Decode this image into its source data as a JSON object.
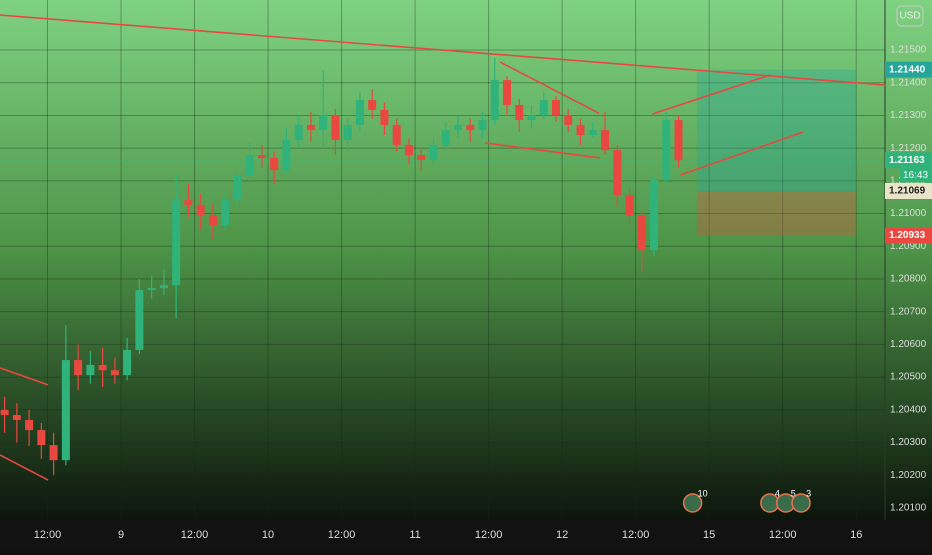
{
  "chart_data": {
    "type": "candlestick",
    "currency": "USD",
    "up_color": "#2fb37a",
    "down_color": "#e8483f",
    "grid": true,
    "xlim": [
      -19.75,
      124.7
    ],
    "ylim": [
      1.20063,
      1.21653
    ],
    "xticks": [
      {
        "value": -12,
        "label": "12:00"
      },
      {
        "value": 0,
        "label": "9"
      },
      {
        "value": 12,
        "label": "12:00"
      },
      {
        "value": 24,
        "label": "10"
      },
      {
        "value": 36,
        "label": "12:00"
      },
      {
        "value": 48,
        "label": "11"
      },
      {
        "value": 60,
        "label": "12:00"
      },
      {
        "value": 72,
        "label": "12"
      },
      {
        "value": 84,
        "label": "12:00"
      },
      {
        "value": 96,
        "label": "15"
      },
      {
        "value": 108,
        "label": "12:00"
      },
      {
        "value": 120,
        "label": "16"
      }
    ],
    "yticks": [
      {
        "value": 1.201,
        "label": "1.20100"
      },
      {
        "value": 1.202,
        "label": "1.20200"
      },
      {
        "value": 1.203,
        "label": "1.20300"
      },
      {
        "value": 1.204,
        "label": "1.20400"
      },
      {
        "value": 1.205,
        "label": "1.20500"
      },
      {
        "value": 1.206,
        "label": "1.20600"
      },
      {
        "value": 1.207,
        "label": "1.20700"
      },
      {
        "value": 1.208,
        "label": "1.20800"
      },
      {
        "value": 1.209,
        "label": "1.20900"
      },
      {
        "value": 1.21,
        "label": "1.21000"
      },
      {
        "value": 1.211,
        "label": "1.21100"
      },
      {
        "value": 1.212,
        "label": "1.21200"
      },
      {
        "value": 1.213,
        "label": "1.21300"
      },
      {
        "value": 1.214,
        "label": "1.21400"
      },
      {
        "value": 1.215,
        "label": "1.21500"
      }
    ],
    "x": [
      -19,
      -17,
      -15,
      -13,
      -11,
      -9,
      -7,
      -5,
      -3,
      -1,
      1,
      3,
      5,
      7,
      9,
      11,
      13,
      15,
      17,
      19,
      21,
      23,
      25,
      27,
      29,
      31,
      33,
      35,
      37,
      39,
      41,
      43,
      45,
      47,
      49,
      51,
      53,
      55,
      57,
      59,
      61,
      63,
      65,
      67,
      69,
      71,
      73,
      75,
      77,
      79,
      81,
      83,
      85,
      87,
      89,
      91
    ],
    "open": [
      1.204,
      1.20384,
      1.20369,
      1.20338,
      1.20292,
      1.20246,
      1.20552,
      1.20506,
      1.20537,
      1.20521,
      1.20506,
      1.20583,
      1.20766,
      1.20772,
      1.20781,
      1.21041,
      1.21026,
      1.20995,
      1.20965,
      1.21041,
      1.21118,
      1.21179,
      1.2117,
      1.21133,
      1.21225,
      1.21271,
      1.21255,
      1.21301,
      1.21225,
      1.21271,
      1.21347,
      1.21317,
      1.21271,
      1.2121,
      1.21179,
      1.21164,
      1.2121,
      1.21255,
      1.21271,
      1.21255,
      1.21286,
      1.21408,
      1.21332,
      1.21286,
      1.21301,
      1.21347,
      1.21301,
      1.21271,
      1.2124,
      1.21255,
      1.21194,
      1.21057,
      1.20995,
      1.20888,
      1.21102,
      1.21286
    ],
    "high": [
      1.2044,
      1.2042,
      1.204,
      1.2036,
      1.2033,
      1.20659,
      1.206,
      1.2058,
      1.2059,
      1.2056,
      1.2062,
      1.208,
      1.2081,
      1.2083,
      1.2112,
      1.2109,
      1.2106,
      1.2103,
      1.2107,
      1.2114,
      1.2122,
      1.2121,
      1.2119,
      1.2126,
      1.213,
      1.2131,
      1.21439,
      1.2132,
      1.2129,
      1.2137,
      1.2138,
      1.2134,
      1.2129,
      1.2123,
      1.212,
      1.2123,
      1.2128,
      1.213,
      1.2129,
      1.2131,
      1.21476,
      1.2142,
      1.2135,
      1.2133,
      1.2137,
      1.2136,
      1.2132,
      1.2129,
      1.2128,
      1.2131,
      1.2121,
      1.2108,
      1.2101,
      1.2112,
      1.2131,
      1.213
    ],
    "low": [
      1.2033,
      1.203,
      1.2029,
      1.2025,
      1.202,
      1.2023,
      1.2046,
      1.2048,
      1.2047,
      1.2048,
      1.2049,
      1.2057,
      1.2074,
      1.2075,
      1.2068,
      1.2099,
      1.2095,
      1.2092,
      1.2095,
      1.2102,
      1.211,
      1.2114,
      1.2109,
      1.2112,
      1.212,
      1.2122,
      1.212,
      1.2118,
      1.2119,
      1.2125,
      1.2129,
      1.2124,
      1.2119,
      1.2115,
      1.2113,
      1.2115,
      1.2119,
      1.2123,
      1.2122,
      1.2123,
      1.2127,
      1.213,
      1.2125,
      1.2126,
      1.2129,
      1.2128,
      1.2125,
      1.2121,
      1.2123,
      1.2118,
      1.2102,
      1.2096,
      1.20821,
      1.2087,
      1.2109,
      1.2114
    ],
    "close": [
      1.20384,
      1.20369,
      1.20338,
      1.20292,
      1.20246,
      1.20552,
      1.20506,
      1.20537,
      1.20521,
      1.20506,
      1.20583,
      1.20766,
      1.20772,
      1.20781,
      1.21041,
      1.21026,
      1.20995,
      1.20965,
      1.21041,
      1.21118,
      1.21179,
      1.2117,
      1.21133,
      1.21225,
      1.21271,
      1.21255,
      1.21301,
      1.21225,
      1.21271,
      1.21347,
      1.21317,
      1.21271,
      1.2121,
      1.21179,
      1.21164,
      1.2121,
      1.21255,
      1.21271,
      1.21255,
      1.21286,
      1.21408,
      1.21332,
      1.21286,
      1.21301,
      1.21347,
      1.21301,
      1.21271,
      1.2124,
      1.21255,
      1.21194,
      1.21057,
      1.20995,
      1.20888,
      1.21102,
      1.21286,
      1.21163
    ],
    "trend_lines": [
      {
        "x": [
          -19.75,
          124.7
        ],
        "y": [
          1.21607,
          1.21393
        ]
      },
      {
        "x": [
          61.9,
          78.0
        ],
        "y": [
          1.21463,
          1.21307
        ]
      },
      {
        "x": [
          59.4,
          78.2
        ],
        "y": [
          1.21216,
          1.2117
        ]
      },
      {
        "x": [
          86.7,
          106.0
        ],
        "y": [
          1.21304,
          1.21424
        ]
      },
      {
        "x": [
          91.3,
          111.3
        ],
        "y": [
          1.21118,
          1.21249
        ]
      },
      {
        "x": [
          -19.75,
          -11.9
        ],
        "y": [
          1.20528,
          1.20476
        ]
      },
      {
        "x": [
          -19.75,
          -11.9
        ],
        "y": [
          1.20262,
          1.20185
        ]
      }
    ],
    "position": {
      "start": 94,
      "end": 120,
      "entry": 1.21069,
      "target": 1.2144,
      "stop": 1.20933
    },
    "price_labels": [
      {
        "value": 1.2144,
        "label": "1.21440",
        "color": "#26a69a"
      },
      {
        "value": 1.21069,
        "label": "1.21069",
        "color": "#e9e4c8"
      },
      {
        "value": 1.20933,
        "label": "1.20933",
        "color": "#e8483f"
      }
    ],
    "last_price": {
      "value": 1.21163,
      "label": "1.21163",
      "countdown": "16:43"
    },
    "events": [
      {
        "x": 93.3,
        "count": 10
      },
      {
        "x": 105.9,
        "count": 4
      },
      {
        "x": 108.5,
        "count": 5
      },
      {
        "x": 111,
        "count": 3
      }
    ]
  }
}
